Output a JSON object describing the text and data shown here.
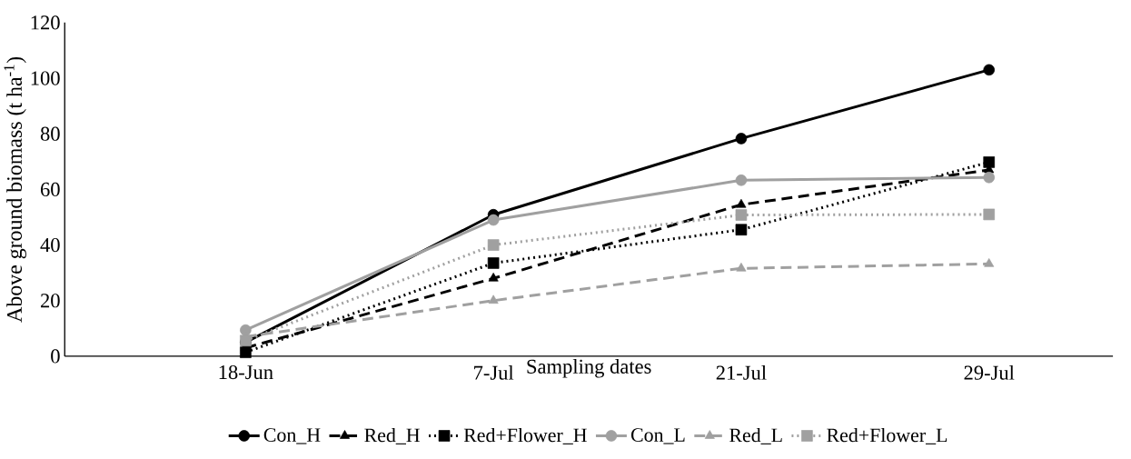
{
  "chart_data": {
    "type": "line",
    "xlabel": "Sampling dates",
    "ylabel": "Above ground biomass (t ha$^{-1}$)",
    "categories": [
      "18-Jun",
      "7-Jul",
      "21-Jul",
      "29-Jul"
    ],
    "ylim": [
      0,
      120
    ],
    "yticks": [
      0,
      20,
      40,
      60,
      80,
      100,
      120
    ],
    "legend": "bottom",
    "series": [
      {
        "name": "Con_H",
        "color": "#000000",
        "marker": "circle",
        "line_style": "solid",
        "values": [
          5,
          50.9,
          78.3,
          103
        ]
      },
      {
        "name": "Red_H",
        "color": "#000000",
        "marker": "triangle",
        "line_style": "dashed",
        "values": [
          3,
          28,
          54.5,
          67
        ]
      },
      {
        "name": "Red+Flower_H",
        "color": "#000000",
        "marker": "square",
        "line_style": "dotted",
        "values": [
          1.4,
          33.5,
          45.5,
          69.8
        ]
      },
      {
        "name": "Con_L",
        "color": "#a0a0a0",
        "marker": "circle",
        "line_style": "solid",
        "values": [
          9.4,
          49,
          63.3,
          64.3
        ]
      },
      {
        "name": "Red_L",
        "color": "#a0a0a0",
        "marker": "triangle",
        "line_style": "dashed",
        "values": [
          7,
          20,
          31.6,
          33.2
        ]
      },
      {
        "name": "Red+Flower_L",
        "color": "#a0a0a0",
        "marker": "square",
        "line_style": "dotted",
        "values": [
          5.6,
          40,
          50.8,
          51
        ]
      }
    ]
  }
}
